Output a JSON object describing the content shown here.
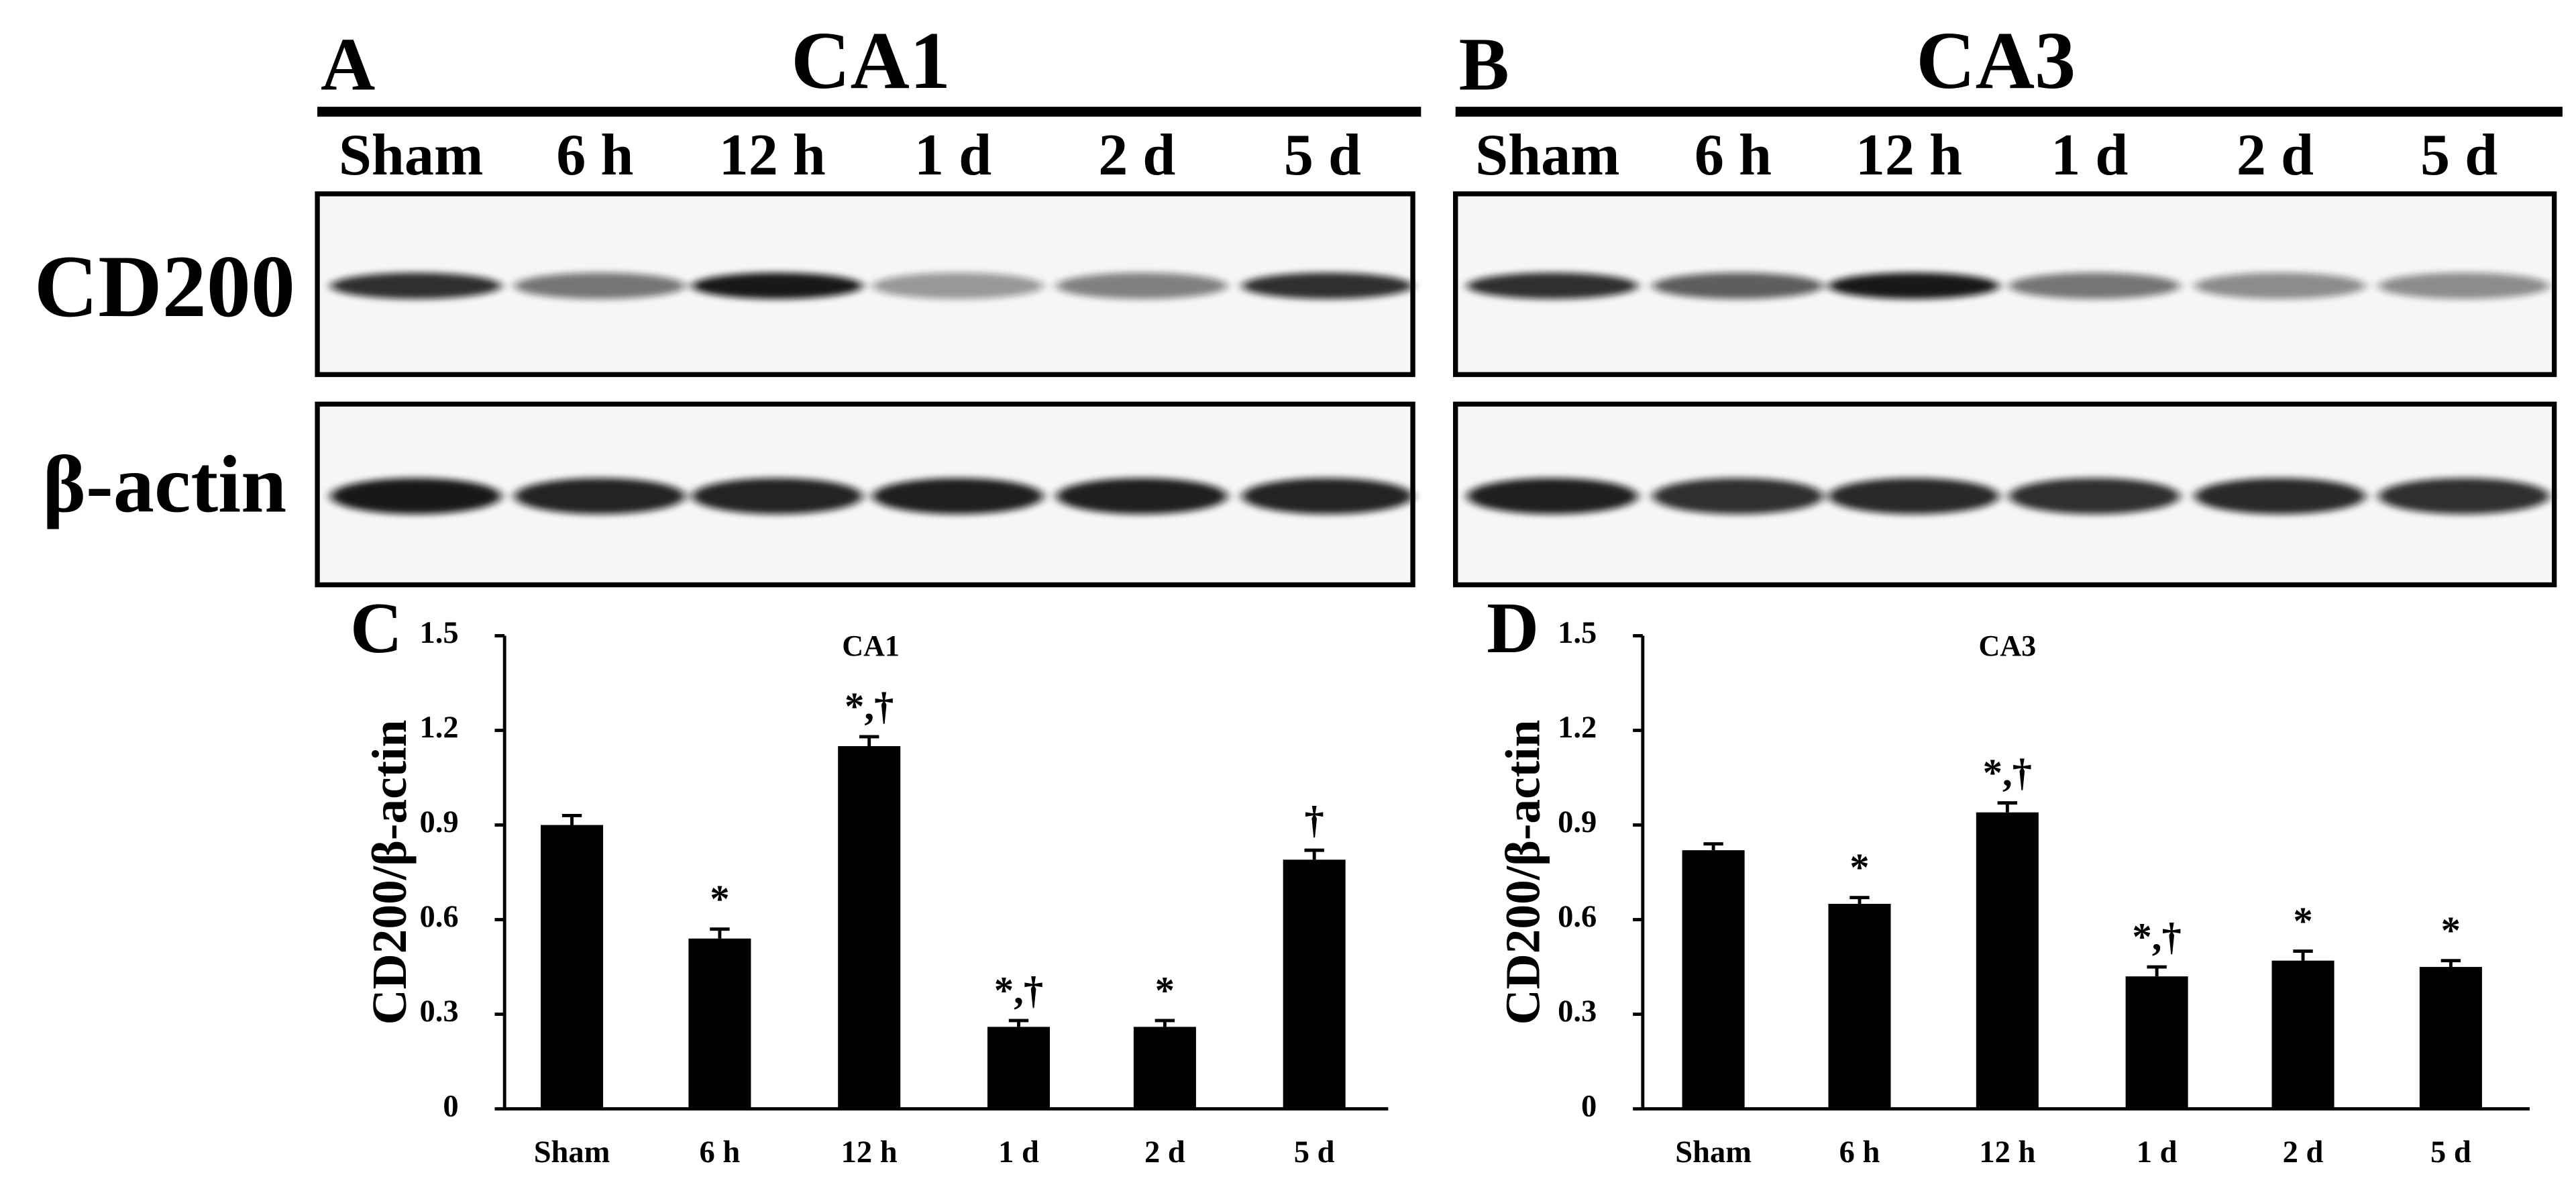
{
  "blots": {
    "row_labels": [
      "CD200",
      "β-actin"
    ],
    "panels": [
      {
        "letter": "A",
        "title": "CA1",
        "lanes": [
          "Sham",
          "6 h",
          "12 h",
          "1 d",
          "2 d",
          "5 d"
        ]
      },
      {
        "letter": "B",
        "title": "CA3",
        "lanes": [
          "Sham",
          "6 h",
          "12 h",
          "1 d",
          "2 d",
          "5 d"
        ]
      }
    ]
  },
  "chart_data": [
    {
      "type": "bar",
      "letter": "C",
      "title": "CA1",
      "y_label": "CD200/β-actin",
      "categories": [
        "Sham",
        "6 h",
        "12 h",
        "1 d",
        "2 d",
        "5 d"
      ],
      "values": [
        0.9,
        0.54,
        1.15,
        0.26,
        0.26,
        0.79
      ],
      "errors": [
        0.03,
        0.03,
        0.03,
        0.02,
        0.02,
        0.03
      ],
      "annotations": [
        null,
        "*",
        "*,†",
        "*,†",
        "*",
        "†"
      ],
      "color": "#000000",
      "ylim": [
        0,
        1.5
      ],
      "yticks": [
        0,
        0.3,
        0.6,
        0.9,
        1.2,
        1.5
      ]
    },
    {
      "type": "bar",
      "letter": "D",
      "title": "CA3",
      "y_label": "CD200/β-actin",
      "categories": [
        "Sham",
        "6 h",
        "12 h",
        "1 d",
        "2 d",
        "5 d"
      ],
      "values": [
        0.82,
        0.65,
        0.94,
        0.42,
        0.47,
        0.45
      ],
      "errors": [
        0.02,
        0.02,
        0.03,
        0.03,
        0.03,
        0.02
      ],
      "annotations": [
        null,
        "*",
        "*,†",
        "*,†",
        "*",
        "*"
      ],
      "color": "#000000",
      "ylim": [
        0,
        1.5
      ],
      "yticks": [
        0,
        0.3,
        0.6,
        0.9,
        1.2,
        1.5
      ]
    }
  ]
}
